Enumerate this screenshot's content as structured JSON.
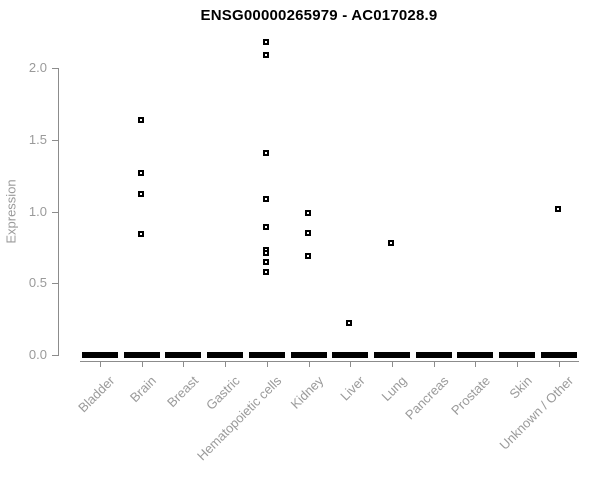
{
  "chart_data": {
    "type": "scatter",
    "title": "ENSG00000265979 - AC017028.9",
    "ylabel": "Expression",
    "xlabel": "",
    "ylim": [
      0,
      2.2
    ],
    "yticks": [
      0.0,
      0.5,
      1.0,
      1.5,
      2.0
    ],
    "ytick_labels": [
      "0.0",
      "0.5",
      "1.0",
      "1.5",
      "2.0"
    ],
    "grid": false,
    "legend": false,
    "point_style": "open-square",
    "colors": {
      "point": "#000000",
      "zero_dash": "#000000",
      "axis": "#8c8c8c",
      "tick_label": "#9a9a9a",
      "title": "#000000"
    },
    "categories": [
      "Bladder",
      "Brain",
      "Breast",
      "Gastric",
      "Hematopoietic cells",
      "Kidney",
      "Liver",
      "Lung",
      "Pancreas",
      "Prostate",
      "Skin",
      "Unknown / Other"
    ],
    "series": [
      {
        "category": "Bladder",
        "values": [],
        "zero_cluster": true
      },
      {
        "category": "Brain",
        "values": [
          1.64,
          1.27,
          1.12,
          0.84
        ],
        "zero_cluster": true
      },
      {
        "category": "Breast",
        "values": [],
        "zero_cluster": true
      },
      {
        "category": "Gastric",
        "values": [],
        "zero_cluster": true
      },
      {
        "category": "Hematopoietic cells",
        "values": [
          2.18,
          2.09,
          1.41,
          1.09,
          0.89,
          0.73,
          0.71,
          0.65,
          0.58
        ],
        "zero_cluster": true
      },
      {
        "category": "Kidney",
        "values": [
          0.99,
          0.85,
          0.69
        ],
        "zero_cluster": true
      },
      {
        "category": "Liver",
        "values": [
          0.22
        ],
        "zero_cluster": true
      },
      {
        "category": "Lung",
        "values": [
          0.78
        ],
        "zero_cluster": true
      },
      {
        "category": "Pancreas",
        "values": [],
        "zero_cluster": true
      },
      {
        "category": "Prostate",
        "values": [],
        "zero_cluster": true
      },
      {
        "category": "Skin",
        "values": [],
        "zero_cluster": true
      },
      {
        "category": "Unknown / Other",
        "values": [
          1.02
        ],
        "zero_cluster": true
      }
    ]
  }
}
